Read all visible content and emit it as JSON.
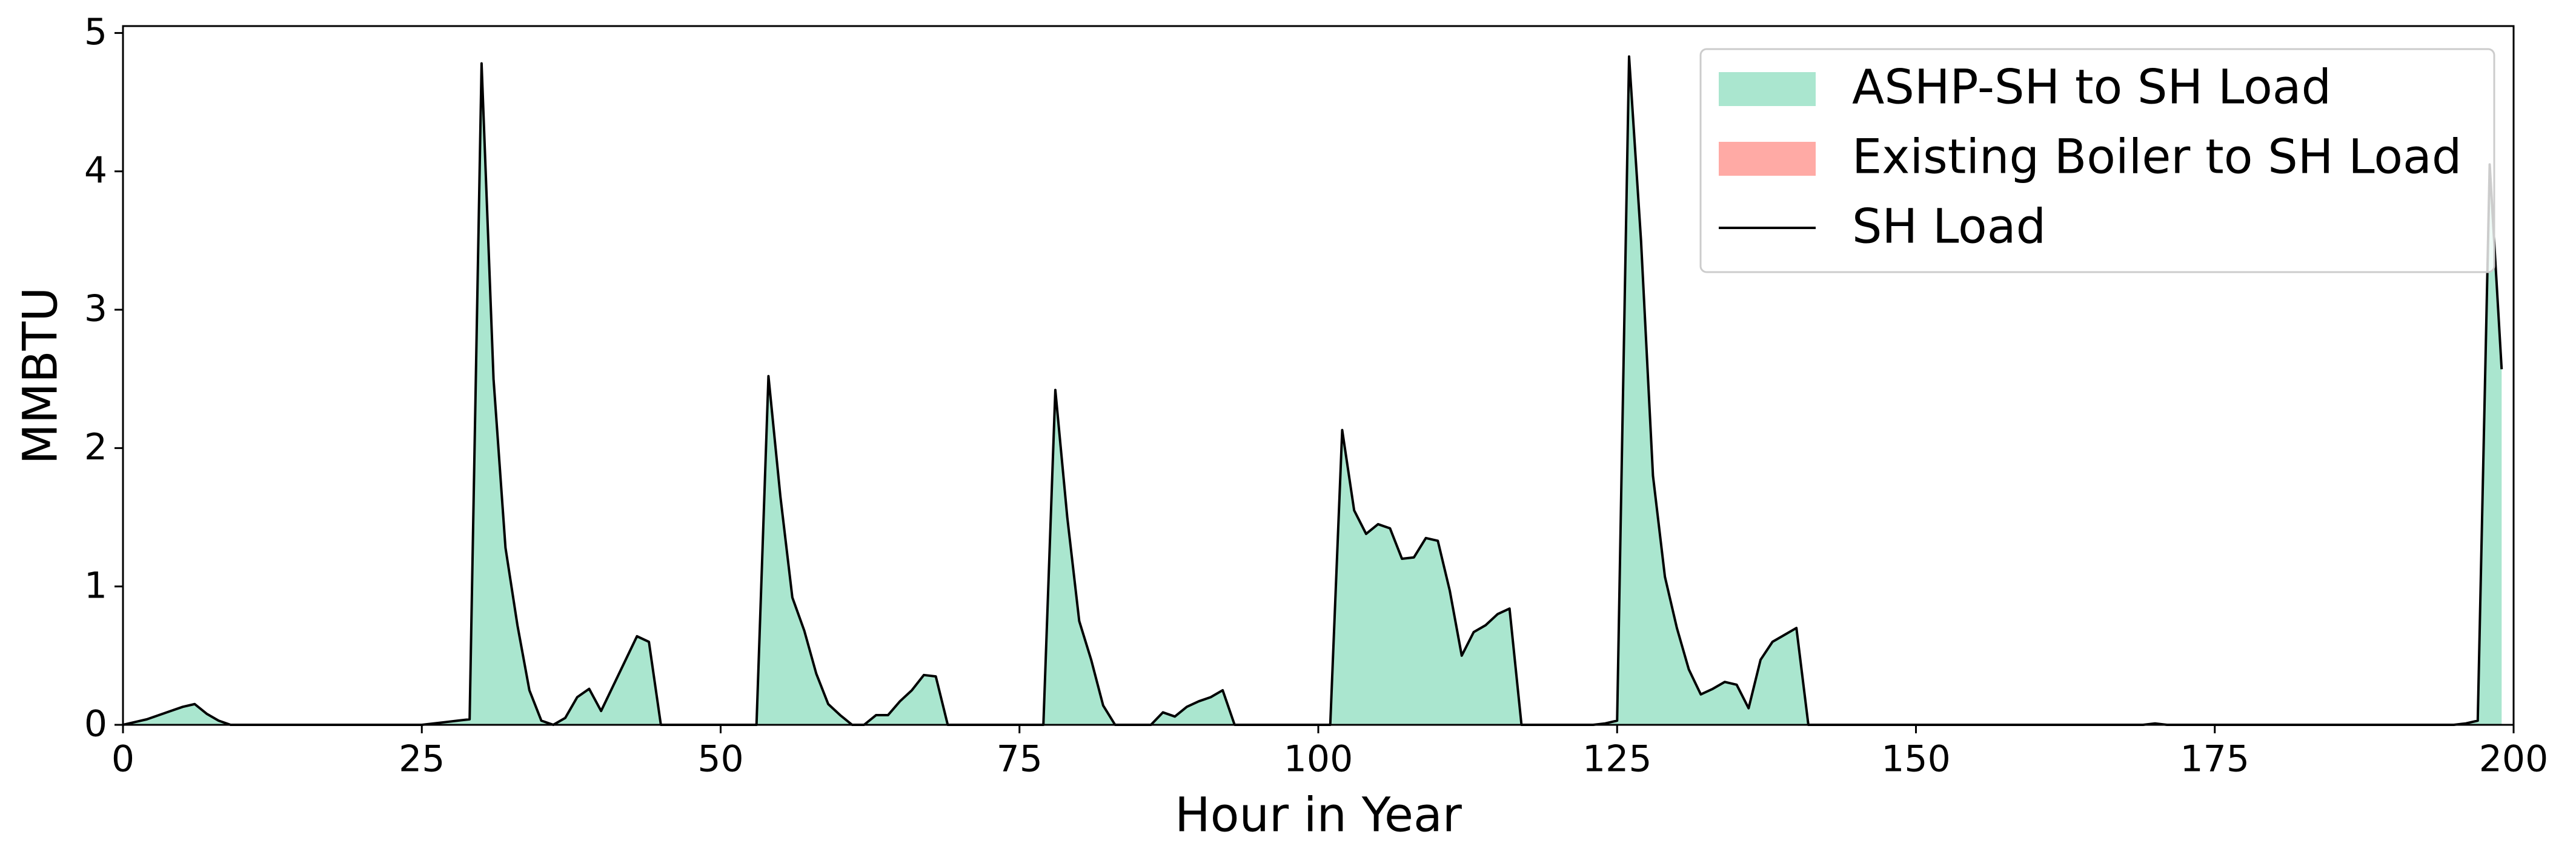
{
  "chart_data": {
    "type": "stacked_area",
    "xlabel": "Hour in Year",
    "ylabel": "MMBTU",
    "xlim": [
      0,
      200
    ],
    "ylim": [
      0,
      5.05
    ],
    "xticks": [
      0,
      25,
      50,
      75,
      100,
      125,
      150,
      175,
      200
    ],
    "yticks": [
      0,
      1,
      2,
      3,
      4,
      5
    ],
    "legend": "upper right",
    "x": [
      0,
      1,
      2,
      3,
      4,
      5,
      6,
      7,
      8,
      9,
      10,
      11,
      12,
      13,
      14,
      15,
      16,
      17,
      18,
      19,
      20,
      21,
      22,
      23,
      24,
      25,
      26,
      27,
      28,
      29,
      30,
      31,
      32,
      33,
      34,
      35,
      36,
      37,
      38,
      39,
      40,
      41,
      42,
      43,
      44,
      45,
      46,
      47,
      48,
      49,
      50,
      51,
      52,
      53,
      54,
      55,
      56,
      57,
      58,
      59,
      60,
      61,
      62,
      63,
      64,
      65,
      66,
      67,
      68,
      69,
      70,
      71,
      72,
      73,
      74,
      75,
      76,
      77,
      78,
      79,
      80,
      81,
      82,
      83,
      84,
      85,
      86,
      87,
      88,
      89,
      90,
      91,
      92,
      93,
      94,
      95,
      96,
      97,
      98,
      99,
      100,
      101,
      102,
      103,
      104,
      105,
      106,
      107,
      108,
      109,
      110,
      111,
      112,
      113,
      114,
      115,
      116,
      117,
      118,
      119,
      120,
      121,
      122,
      123,
      124,
      125,
      126,
      127,
      128,
      129,
      130,
      131,
      132,
      133,
      134,
      135,
      136,
      137,
      138,
      139,
      140,
      141,
      142,
      143,
      144,
      145,
      146,
      147,
      148,
      149,
      150,
      151,
      152,
      153,
      154,
      155,
      156,
      157,
      158,
      159,
      160,
      161,
      162,
      163,
      164,
      165,
      166,
      167,
      168,
      169,
      170,
      171,
      172,
      173,
      174,
      175,
      176,
      177,
      178,
      179,
      180,
      181,
      182,
      183,
      184,
      185,
      186,
      187,
      188,
      189,
      190,
      191,
      192,
      193,
      194,
      195,
      196,
      197,
      198,
      199
    ],
    "series": [
      {
        "name": "ASHP-SH to SH Load",
        "kind": "area",
        "color": "#aae6cf",
        "values": [
          0,
          0.02,
          0.04,
          0.07,
          0.1,
          0.13,
          0.15,
          0.08,
          0.03,
          0,
          0,
          0,
          0,
          0,
          0,
          0,
          0,
          0,
          0,
          0,
          0,
          0,
          0,
          0,
          0,
          0,
          0.01,
          0.02,
          0.03,
          0.04,
          4.78,
          2.5,
          1.28,
          0.72,
          0.25,
          0.03,
          0,
          0.05,
          0.2,
          0.26,
          0.1,
          0.28,
          0.46,
          0.64,
          0.6,
          0,
          0,
          0,
          0,
          0,
          0,
          0,
          0,
          0,
          2.52,
          1.65,
          0.92,
          0.68,
          0.37,
          0.15,
          0.07,
          0,
          0,
          0.07,
          0.07,
          0.17,
          0.25,
          0.36,
          0.35,
          0,
          0,
          0,
          0,
          0,
          0,
          0,
          0,
          0,
          2.42,
          1.5,
          0.75,
          0.47,
          0.14,
          0,
          0,
          0,
          0,
          0.09,
          0.06,
          0.13,
          0.17,
          0.2,
          0.25,
          0,
          0,
          0,
          0,
          0,
          0,
          0,
          0,
          0,
          2.13,
          1.55,
          1.38,
          1.45,
          1.42,
          1.2,
          1.21,
          1.35,
          1.33,
          0.97,
          0.5,
          0.67,
          0.72,
          0.8,
          0.84,
          0,
          0,
          0,
          0,
          0,
          0,
          0,
          0.01,
          0.03,
          4.83,
          3.5,
          1.8,
          1.07,
          0.7,
          0.4,
          0.22,
          0.26,
          0.31,
          0.29,
          0.12,
          0.47,
          0.6,
          0.65,
          0.7,
          0,
          0,
          0,
          0,
          0,
          0,
          0,
          0,
          0,
          0,
          0,
          0,
          0,
          0,
          0,
          0,
          0,
          0,
          0,
          0,
          0,
          0,
          0,
          0,
          0,
          0,
          0,
          0,
          0,
          0.01,
          0,
          0,
          0,
          0,
          0,
          0,
          0,
          0,
          0,
          0,
          0,
          0,
          0,
          0,
          0,
          0,
          0,
          0,
          0,
          0,
          0,
          0,
          0,
          0,
          0,
          0.01,
          0.03,
          4.05,
          2.57
        ]
      },
      {
        "name": "Existing Boiler to SH Load",
        "kind": "area",
        "color": "#ffaaa5",
        "values": [
          0,
          0,
          0,
          0,
          0,
          0,
          0,
          0,
          0,
          0,
          0,
          0,
          0,
          0,
          0,
          0,
          0,
          0,
          0,
          0,
          0,
          0,
          0,
          0,
          0,
          0,
          0,
          0,
          0,
          0,
          0,
          0,
          0,
          0,
          0,
          0,
          0,
          0,
          0,
          0,
          0,
          0,
          0,
          0,
          0,
          0,
          0,
          0,
          0,
          0,
          0,
          0,
          0,
          0,
          0,
          0,
          0,
          0,
          0,
          0,
          0,
          0,
          0,
          0,
          0,
          0,
          0,
          0,
          0,
          0,
          0,
          0,
          0,
          0,
          0,
          0,
          0,
          0,
          0,
          0,
          0,
          0,
          0,
          0,
          0,
          0,
          0,
          0,
          0,
          0,
          0,
          0,
          0,
          0,
          0,
          0,
          0,
          0,
          0,
          0,
          0,
          0,
          0,
          0,
          0,
          0,
          0,
          0,
          0,
          0,
          0,
          0,
          0,
          0,
          0,
          0,
          0,
          0,
          0,
          0,
          0,
          0,
          0,
          0,
          0,
          0,
          0,
          0,
          0,
          0,
          0,
          0,
          0,
          0,
          0,
          0,
          0,
          0,
          0,
          0,
          0,
          0,
          0,
          0,
          0,
          0,
          0,
          0,
          0,
          0,
          0,
          0,
          0,
          0,
          0,
          0,
          0,
          0,
          0,
          0,
          0,
          0,
          0,
          0,
          0,
          0,
          0,
          0,
          0,
          0,
          0,
          0,
          0,
          0,
          0,
          0,
          0,
          0,
          0,
          0,
          0,
          0,
          0,
          0,
          0,
          0,
          0,
          0,
          0,
          0,
          0,
          0,
          0,
          0,
          0,
          0,
          0,
          0,
          0,
          0
        ]
      },
      {
        "name": "SH Load",
        "kind": "line",
        "color": "#000000",
        "values": [
          0,
          0.02,
          0.04,
          0.07,
          0.1,
          0.13,
          0.15,
          0.08,
          0.03,
          0,
          0,
          0,
          0,
          0,
          0,
          0,
          0,
          0,
          0,
          0,
          0,
          0,
          0,
          0,
          0,
          0,
          0.01,
          0.02,
          0.03,
          0.04,
          4.78,
          2.5,
          1.28,
          0.72,
          0.25,
          0.03,
          0,
          0.05,
          0.2,
          0.26,
          0.1,
          0.28,
          0.46,
          0.64,
          0.6,
          0,
          0,
          0,
          0,
          0,
          0,
          0,
          0,
          0,
          2.52,
          1.65,
          0.92,
          0.68,
          0.37,
          0.15,
          0.07,
          0,
          0,
          0.07,
          0.07,
          0.17,
          0.25,
          0.36,
          0.35,
          0,
          0,
          0,
          0,
          0,
          0,
          0,
          0,
          0,
          2.42,
          1.5,
          0.75,
          0.47,
          0.14,
          0,
          0,
          0,
          0,
          0.09,
          0.06,
          0.13,
          0.17,
          0.2,
          0.25,
          0,
          0,
          0,
          0,
          0,
          0,
          0,
          0,
          0,
          2.13,
          1.55,
          1.38,
          1.45,
          1.42,
          1.2,
          1.21,
          1.35,
          1.33,
          0.97,
          0.5,
          0.67,
          0.72,
          0.8,
          0.84,
          0,
          0,
          0,
          0,
          0,
          0,
          0,
          0.01,
          0.03,
          4.83,
          3.5,
          1.8,
          1.07,
          0.7,
          0.4,
          0.22,
          0.26,
          0.31,
          0.29,
          0.12,
          0.47,
          0.6,
          0.65,
          0.7,
          0,
          0,
          0,
          0,
          0,
          0,
          0,
          0,
          0,
          0,
          0,
          0,
          0,
          0,
          0,
          0,
          0,
          0,
          0,
          0,
          0,
          0,
          0,
          0,
          0,
          0,
          0,
          0,
          0,
          0.01,
          0,
          0,
          0,
          0,
          0,
          0,
          0,
          0,
          0,
          0,
          0,
          0,
          0,
          0,
          0,
          0,
          0,
          0,
          0,
          0,
          0,
          0,
          0,
          0,
          0,
          0.01,
          0.03,
          4.05,
          2.57
        ]
      }
    ]
  }
}
